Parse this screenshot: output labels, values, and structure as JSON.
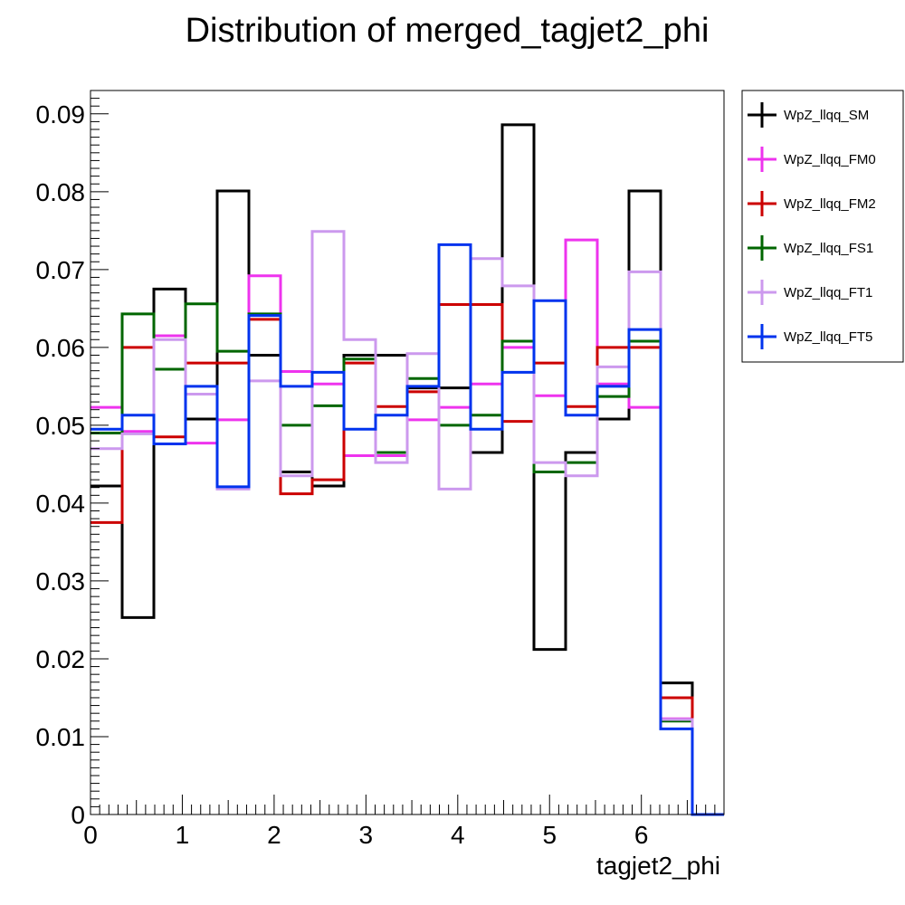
{
  "chart_data": {
    "type": "line",
    "title": "Distribution of merged_tagjet2_phi",
    "xlabel": "tagjet2_phi",
    "ylabel": "",
    "xlim": [
      0,
      6.9
    ],
    "ylim": [
      0,
      0.093
    ],
    "x_ticks": [
      "0",
      "1",
      "2",
      "3",
      "4",
      "5",
      "6"
    ],
    "y_ticks": [
      "0",
      "0.01",
      "0.02",
      "0.03",
      "0.04",
      "0.05",
      "0.06",
      "0.07",
      "0.08",
      "0.09"
    ],
    "bin_edges": [
      0,
      0.345,
      0.69,
      1.035,
      1.38,
      1.725,
      2.07,
      2.415,
      2.76,
      3.105,
      3.45,
      3.795,
      4.14,
      4.485,
      4.83,
      5.175,
      5.52,
      5.865,
      6.21,
      6.555,
      6.9
    ],
    "grid": false,
    "legend_position": "right",
    "series": [
      {
        "name": "WpZ_llqq_SM",
        "color": "#000000",
        "values": [
          0.0422,
          0.0253,
          0.0675,
          0.0508,
          0.0801,
          0.059,
          0.044,
          0.0422,
          0.059,
          0.059,
          0.0548,
          0.0548,
          0.0465,
          0.0886,
          0.0212,
          0.0465,
          0.0508,
          0.0801,
          0.0169,
          0.0
        ]
      },
      {
        "name": "WpZ_llqq_FM0",
        "color": "#ee33ee",
        "values": [
          0.0523,
          0.0492,
          0.0615,
          0.0477,
          0.0507,
          0.0692,
          0.0569,
          0.0553,
          0.0461,
          0.0461,
          0.0507,
          0.0523,
          0.0553,
          0.06,
          0.0538,
          0.0738,
          0.0553,
          0.0523,
          0.0123,
          0.0
        ]
      },
      {
        "name": "WpZ_llqq_FM2",
        "color": "#cc0000",
        "values": [
          0.0375,
          0.06,
          0.0485,
          0.058,
          0.058,
          0.0636,
          0.0412,
          0.043,
          0.058,
          0.0524,
          0.0543,
          0.0655,
          0.0655,
          0.0505,
          0.058,
          0.0524,
          0.06,
          0.06,
          0.015,
          0.0
        ]
      },
      {
        "name": "WpZ_llqq_FS1",
        "color": "#006600",
        "values": [
          0.049,
          0.0643,
          0.0572,
          0.0656,
          0.0595,
          0.0643,
          0.05,
          0.0525,
          0.0585,
          0.0465,
          0.056,
          0.05,
          0.0513,
          0.0608,
          0.044,
          0.0452,
          0.0537,
          0.0608,
          0.012,
          0.0
        ]
      },
      {
        "name": "WpZ_llqq_FT1",
        "color": "#cc99ee",
        "values": [
          0.047,
          0.0489,
          0.061,
          0.054,
          0.0418,
          0.0557,
          0.0435,
          0.0749,
          0.061,
          0.0452,
          0.0592,
          0.0418,
          0.0714,
          0.0679,
          0.0452,
          0.0435,
          0.0575,
          0.0697,
          0.0122,
          0.0
        ]
      },
      {
        "name": "WpZ_llqq_FT5",
        "color": "#0033ee",
        "values": [
          0.0495,
          0.0513,
          0.0476,
          0.055,
          0.0421,
          0.0641,
          0.055,
          0.0568,
          0.0495,
          0.0513,
          0.055,
          0.0732,
          0.0495,
          0.0568,
          0.066,
          0.0513,
          0.055,
          0.0623,
          0.011,
          0.0
        ]
      }
    ]
  }
}
